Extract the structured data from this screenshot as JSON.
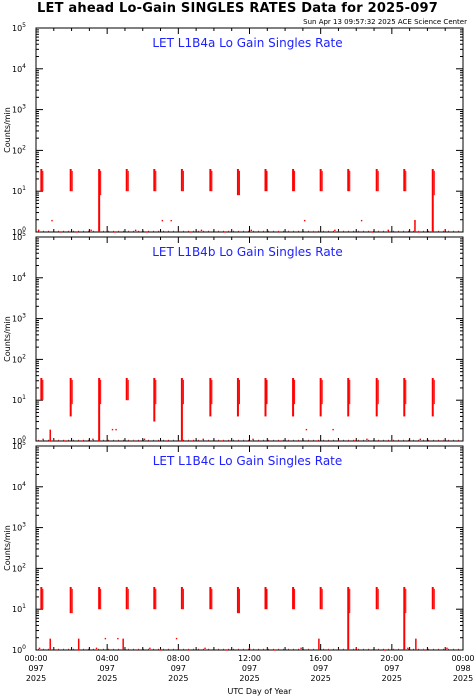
{
  "page": {
    "title": "LET ahead Lo-Gain SINGLES RATES Data for 2025-097",
    "timestamp": "Sun Apr 13 09:57:32 2025 ACE Science Center"
  },
  "chart_data": {
    "type": "line",
    "series_color": "#ff0000",
    "title_color": "#1f22ff",
    "xlabel": "UTC Day of Year",
    "x_range_hours": [
      0,
      24
    ],
    "x_ticks": [
      {
        "hour": 0,
        "time": "00:00",
        "doy": "097",
        "year": "2025"
      },
      {
        "hour": 4,
        "time": "04:00",
        "doy": "097",
        "year": "2025"
      },
      {
        "hour": 8,
        "time": "08:00",
        "doy": "097",
        "year": "2025"
      },
      {
        "hour": 12,
        "time": "12:00",
        "doy": "097",
        "year": "2025"
      },
      {
        "hour": 16,
        "time": "16:00",
        "doy": "097",
        "year": "2025"
      },
      {
        "hour": 20,
        "time": "20:00",
        "doy": "097",
        "year": "2025"
      },
      {
        "hour": 24,
        "time": "00:00",
        "doy": "098",
        "year": "2025"
      }
    ],
    "y_scale": "log",
    "y_range": [
      1,
      100000
    ],
    "y_tick_exponents": [
      0,
      1,
      2,
      3,
      4,
      5
    ],
    "panels": [
      {
        "title": "LET L1B4a Lo Gain Singles Rate",
        "ylabel": "Counts/min",
        "bursts": [
          {
            "hour": 0.3,
            "peak": 35,
            "floor": 10
          },
          {
            "hour": 1.95,
            "peak": 35,
            "floor": 10
          },
          {
            "hour": 3.55,
            "peak": 35,
            "floor": 1
          },
          {
            "hour": 5.1,
            "peak": 35,
            "floor": 10
          },
          {
            "hour": 6.65,
            "peak": 35,
            "floor": 10
          },
          {
            "hour": 8.2,
            "peak": 35,
            "floor": 10
          },
          {
            "hour": 9.8,
            "peak": 35,
            "floor": 10
          },
          {
            "hour": 11.35,
            "peak": 35,
            "floor": 8
          },
          {
            "hour": 12.9,
            "peak": 35,
            "floor": 10
          },
          {
            "hour": 14.45,
            "peak": 35,
            "floor": 10
          },
          {
            "hour": 16.0,
            "peak": 35,
            "floor": 10
          },
          {
            "hour": 17.55,
            "peak": 35,
            "floor": 10
          },
          {
            "hour": 19.15,
            "peak": 35,
            "floor": 10
          },
          {
            "hour": 20.7,
            "peak": 35,
            "floor": 10
          },
          {
            "hour": 22.3,
            "peak": 35,
            "floor": 1
          }
        ],
        "scatter": [
          {
            "hour": 0.15,
            "value": 1.1
          },
          {
            "hour": 0.9,
            "value": 1.9
          },
          {
            "hour": 1.4,
            "value": 1.0
          },
          {
            "hour": 2.3,
            "value": 1.0
          },
          {
            "hour": 3.1,
            "value": 1.1
          },
          {
            "hour": 4.4,
            "value": 1.0
          },
          {
            "hour": 5.6,
            "value": 1.1
          },
          {
            "hour": 6.2,
            "value": 1.0
          },
          {
            "hour": 7.1,
            "value": 1.9
          },
          {
            "hour": 7.6,
            "value": 1.9
          },
          {
            "hour": 8.7,
            "value": 1.0
          },
          {
            "hour": 9.3,
            "value": 1.1
          },
          {
            "hour": 10.6,
            "value": 1.0
          },
          {
            "hour": 12.1,
            "value": 1.1
          },
          {
            "hour": 13.6,
            "value": 1.0
          },
          {
            "hour": 15.1,
            "value": 1.9
          },
          {
            "hour": 15.6,
            "value": 1.0
          },
          {
            "hour": 16.8,
            "value": 1.1
          },
          {
            "hour": 18.3,
            "value": 1.9
          },
          {
            "hour": 18.9,
            "value": 1.0
          },
          {
            "hour": 19.8,
            "value": 1.1
          },
          {
            "hour": 21.3,
            "value": 1.9
          },
          {
            "hour": 21.5,
            "value": 1.0
          },
          {
            "hour": 23.0,
            "value": 1.1
          }
        ],
        "spikes": [
          {
            "hour": 21.3,
            "peak": 1.9
          }
        ]
      },
      {
        "title": "LET L1B4b Lo Gain Singles Rate",
        "ylabel": "Counts/min",
        "bursts": [
          {
            "hour": 0.3,
            "peak": 35,
            "floor": 10
          },
          {
            "hour": 1.95,
            "peak": 35,
            "floor": 4
          },
          {
            "hour": 3.55,
            "peak": 35,
            "floor": 1
          },
          {
            "hour": 5.1,
            "peak": 35,
            "floor": 10
          },
          {
            "hour": 6.65,
            "peak": 35,
            "floor": 3
          },
          {
            "hour": 8.2,
            "peak": 35,
            "floor": 1
          },
          {
            "hour": 9.8,
            "peak": 35,
            "floor": 4
          },
          {
            "hour": 11.35,
            "peak": 35,
            "floor": 4
          },
          {
            "hour": 12.9,
            "peak": 35,
            "floor": 4
          },
          {
            "hour": 14.45,
            "peak": 35,
            "floor": 4
          },
          {
            "hour": 16.0,
            "peak": 35,
            "floor": 4
          },
          {
            "hour": 17.55,
            "peak": 35,
            "floor": 4
          },
          {
            "hour": 19.15,
            "peak": 35,
            "floor": 4
          },
          {
            "hour": 20.7,
            "peak": 35,
            "floor": 4
          },
          {
            "hour": 22.3,
            "peak": 35,
            "floor": 4
          }
        ],
        "scatter": [
          {
            "hour": 0.4,
            "value": 1.1
          },
          {
            "hour": 1.0,
            "value": 1.0
          },
          {
            "hour": 1.6,
            "value": 1.0
          },
          {
            "hour": 2.6,
            "value": 1.0
          },
          {
            "hour": 3.2,
            "value": 1.1
          },
          {
            "hour": 4.3,
            "value": 1.9
          },
          {
            "hour": 4.5,
            "value": 1.9
          },
          {
            "hour": 5.5,
            "value": 1.0
          },
          {
            "hour": 6.1,
            "value": 1.1
          },
          {
            "hour": 7.3,
            "value": 1.0
          },
          {
            "hour": 8.8,
            "value": 1.0
          },
          {
            "hour": 9.4,
            "value": 1.1
          },
          {
            "hour": 10.5,
            "value": 1.0
          },
          {
            "hour": 12.2,
            "value": 1.1
          },
          {
            "hour": 13.7,
            "value": 1.0
          },
          {
            "hour": 15.2,
            "value": 1.9
          },
          {
            "hour": 15.8,
            "value": 1.0
          },
          {
            "hour": 16.7,
            "value": 1.9
          },
          {
            "hour": 17.9,
            "value": 1.0
          },
          {
            "hour": 18.6,
            "value": 1.1
          },
          {
            "hour": 20.0,
            "value": 1.0
          },
          {
            "hour": 21.6,
            "value": 1.1
          },
          {
            "hour": 22.9,
            "value": 1.0
          }
        ],
        "spikes": [
          {
            "hour": 0.8,
            "peak": 1.9
          }
        ]
      },
      {
        "title": "LET L1B4c Lo Gain Singles Rate",
        "ylabel": "Counts/min",
        "bursts": [
          {
            "hour": 0.3,
            "peak": 35,
            "floor": 10
          },
          {
            "hour": 1.95,
            "peak": 35,
            "floor": 8
          },
          {
            "hour": 3.55,
            "peak": 35,
            "floor": 10
          },
          {
            "hour": 5.1,
            "peak": 35,
            "floor": 10
          },
          {
            "hour": 6.65,
            "peak": 35,
            "floor": 10
          },
          {
            "hour": 8.2,
            "peak": 35,
            "floor": 10
          },
          {
            "hour": 9.8,
            "peak": 35,
            "floor": 10
          },
          {
            "hour": 11.35,
            "peak": 35,
            "floor": 8
          },
          {
            "hour": 12.9,
            "peak": 35,
            "floor": 10
          },
          {
            "hour": 14.45,
            "peak": 35,
            "floor": 10
          },
          {
            "hour": 16.0,
            "peak": 35,
            "floor": 10
          },
          {
            "hour": 17.55,
            "peak": 35,
            "floor": 1
          },
          {
            "hour": 19.15,
            "peak": 35,
            "floor": 10
          },
          {
            "hour": 20.7,
            "peak": 35,
            "floor": 1
          },
          {
            "hour": 22.3,
            "peak": 35,
            "floor": 10
          }
        ],
        "scatter": [
          {
            "hour": 0.2,
            "value": 1.1
          },
          {
            "hour": 1.2,
            "value": 1.0
          },
          {
            "hour": 2.4,
            "value": 1.0
          },
          {
            "hour": 3.4,
            "value": 1.1
          },
          {
            "hour": 3.9,
            "value": 1.9
          },
          {
            "hour": 4.6,
            "value": 1.9
          },
          {
            "hour": 5.7,
            "value": 1.0
          },
          {
            "hour": 6.4,
            "value": 1.1
          },
          {
            "hour": 7.0,
            "value": 1.0
          },
          {
            "hour": 7.9,
            "value": 1.9
          },
          {
            "hour": 8.6,
            "value": 1.0
          },
          {
            "hour": 9.5,
            "value": 1.1
          },
          {
            "hour": 10.7,
            "value": 1.0
          },
          {
            "hour": 12.0,
            "value": 1.1
          },
          {
            "hour": 13.4,
            "value": 1.0
          },
          {
            "hour": 14.9,
            "value": 1.1
          },
          {
            "hour": 16.4,
            "value": 1.0
          },
          {
            "hour": 18.0,
            "value": 1.1
          },
          {
            "hour": 19.6,
            "value": 1.0
          },
          {
            "hour": 20.9,
            "value": 1.1
          },
          {
            "hour": 21.8,
            "value": 1.0
          },
          {
            "hour": 23.1,
            "value": 1.1
          }
        ],
        "spikes": [
          {
            "hour": 0.8,
            "peak": 1.9
          },
          {
            "hour": 2.4,
            "peak": 1.9
          },
          {
            "hour": 4.9,
            "peak": 1.9
          },
          {
            "hour": 15.9,
            "peak": 1.9
          },
          {
            "hour": 21.35,
            "peak": 1.9
          }
        ]
      }
    ]
  }
}
